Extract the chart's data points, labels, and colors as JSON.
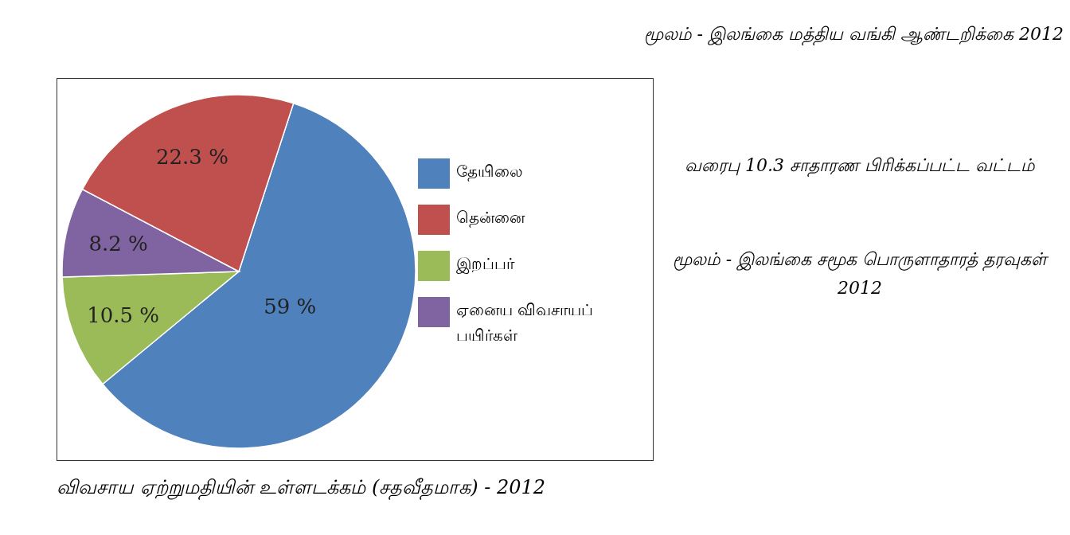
{
  "chart_data": {
    "type": "pie",
    "title": "விவசாய ஏற்றுமதியின் உள்ளடக்கம் (சதவீதமாக) - 2012",
    "categories": [
      "தேயிலை",
      "இறப்பர்",
      "ஏனைய விவசாயப் பயிர்கள்",
      "தென்னை"
    ],
    "values": [
      59,
      10.5,
      8.2,
      22.3
    ],
    "colors": [
      "#4f81bd",
      "#9bbb59",
      "#8064a2",
      "#c0504d"
    ],
    "value_labels": [
      "59 %",
      "10.5 %",
      "8.2 %",
      "22.3 %"
    ],
    "legend": "right",
    "annotations": [
      "மூலம் - இலங்கை மத்திய வங்கி ஆண்டறிக்கை 2012",
      "வரைபு 10.3 சாதாரண பிரிக்கப்பட்ட வட்டம்",
      "மூலம் - இலங்கை சமூக பொருளாதாரத் தரவுகள் 2012"
    ]
  }
}
